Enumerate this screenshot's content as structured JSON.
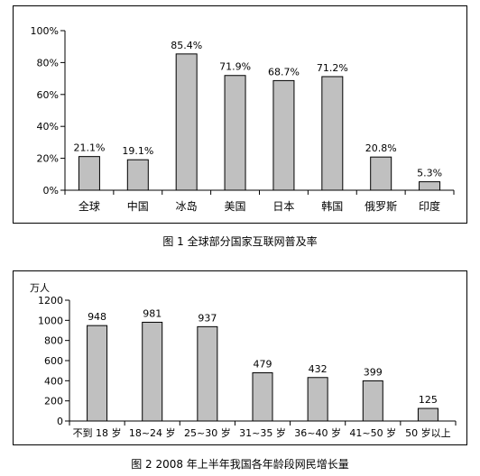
{
  "figures": [
    {
      "caption": "图 1  全球部分国家互联网普及率"
    },
    {
      "caption": "图 2  2008 年上半年我国各年龄段网民增长量"
    }
  ],
  "chart_data": [
    {
      "type": "bar",
      "title": "",
      "categories": [
        "全球",
        "中国",
        "冰岛",
        "美国",
        "日本",
        "韩国",
        "俄罗斯",
        "印度"
      ],
      "values": [
        21.1,
        19.1,
        85.4,
        71.9,
        68.7,
        71.2,
        20.8,
        5.3
      ],
      "value_labels": [
        "21.1%",
        "19.1%",
        "85.4%",
        "71.9%",
        "68.7%",
        "71.2%",
        "20.8%",
        "5.3%"
      ],
      "ylim": [
        0,
        100
      ],
      "yticks": [
        0,
        20,
        40,
        60,
        80,
        100
      ],
      "ytick_labels": [
        "0%",
        "20%",
        "40%",
        "60%",
        "80%",
        "100%"
      ],
      "xlabel": "",
      "ylabel": "",
      "bar_color": "#c0c0c0",
      "edge_color": "#000000",
      "grid": false,
      "legend": false
    },
    {
      "type": "bar",
      "title": "",
      "categories": [
        "不到 18 岁",
        "18~24 岁",
        "25~30 岁",
        "31~35 岁",
        "36~40 岁",
        "41~50 岁",
        "50 岁以上"
      ],
      "values": [
        948,
        981,
        937,
        479,
        432,
        399,
        125
      ],
      "value_labels": [
        "948",
        "981",
        "937",
        "479",
        "432",
        "399",
        "125"
      ],
      "ylim": [
        0,
        1200
      ],
      "yticks": [
        0,
        200,
        400,
        600,
        800,
        1000,
        1200
      ],
      "ytick_labels": [
        "0",
        "200",
        "400",
        "600",
        "800",
        "1000",
        "1200"
      ],
      "xlabel": "",
      "ylabel": "万人",
      "bar_color": "#c0c0c0",
      "edge_color": "#000000",
      "grid": false,
      "legend": false
    }
  ]
}
